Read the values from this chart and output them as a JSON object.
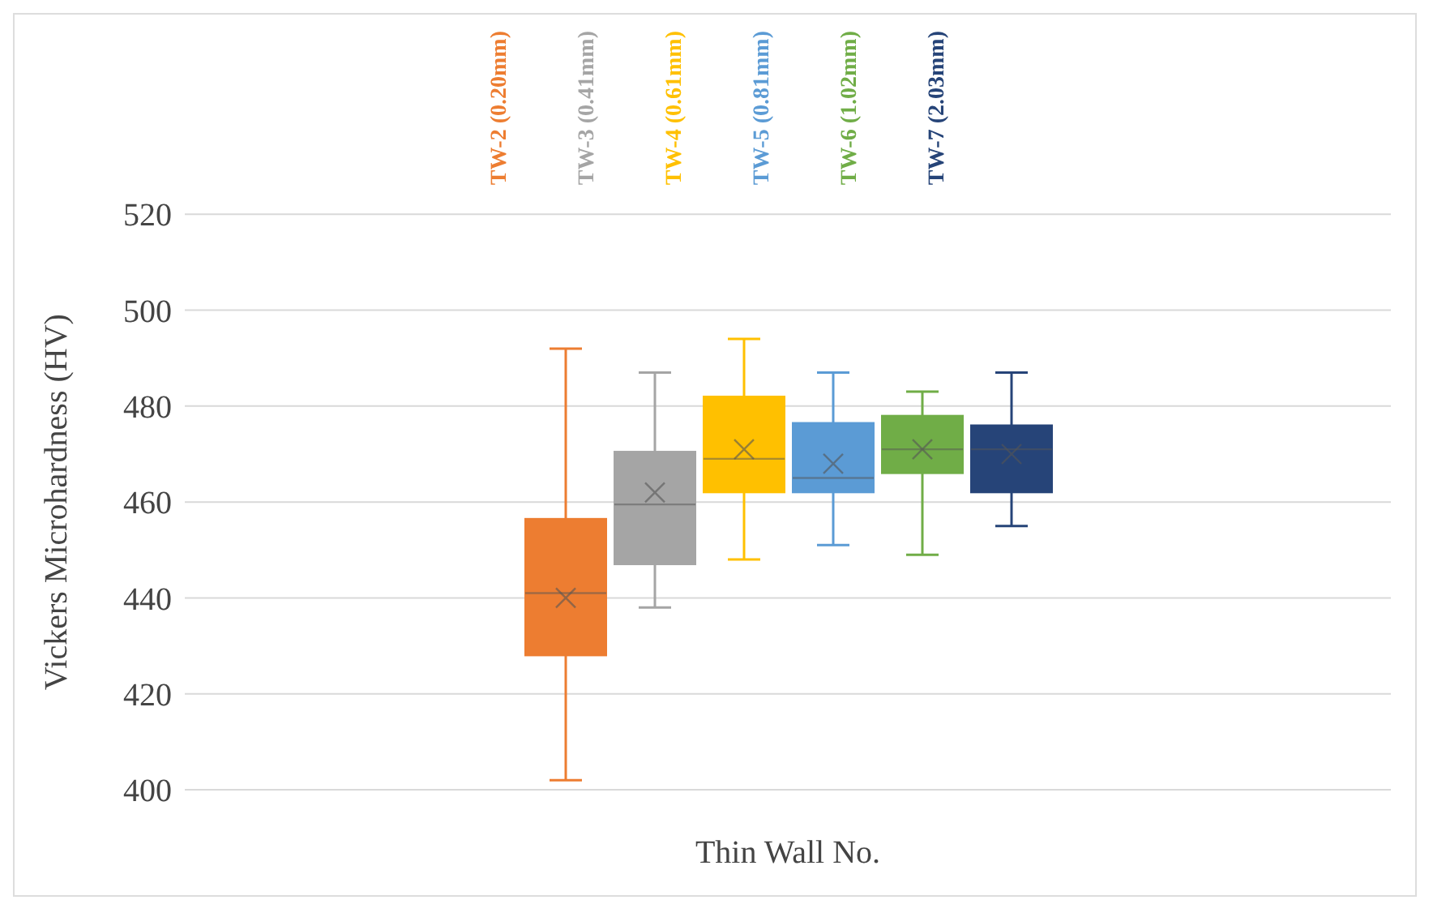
{
  "chart_data": {
    "type": "box",
    "ylabel": "Vickers Microhardness (HV)",
    "xlabel": "Thin Wall No.",
    "categories": [
      null
    ],
    "ylim": [
      400,
      520
    ],
    "yticks": [
      400,
      420,
      440,
      460,
      480,
      500,
      520
    ],
    "grid": "y",
    "legend": "top",
    "marker": "cross",
    "series": [
      {
        "name": "TW-2 (0.20mm)",
        "color": "#ed7d31",
        "boxes": [
          {
            "low": 402,
            "q1": 428,
            "median": 441,
            "q3": 456.5,
            "high": 492,
            "mean": 440
          }
        ]
      },
      {
        "name": "TW-3 (0.41mm)",
        "color": "#a5a5a5",
        "boxes": [
          {
            "low": 438,
            "q1": 447,
            "median": 459.5,
            "q3": 470.5,
            "high": 487,
            "mean": 462
          }
        ]
      },
      {
        "name": "TW-4 (0.61mm)",
        "color": "#ffc000",
        "boxes": [
          {
            "low": 448,
            "q1": 462,
            "median": 469,
            "q3": 482,
            "high": 494,
            "mean": 471
          }
        ]
      },
      {
        "name": "TW-5 (0.81mm)",
        "color": "#5b9bd5",
        "boxes": [
          {
            "low": 451,
            "q1": 462,
            "median": 465,
            "q3": 476.5,
            "high": 487,
            "mean": 468
          }
        ]
      },
      {
        "name": "TW-6 (1.02mm)",
        "color": "#70ad47",
        "boxes": [
          {
            "low": 449,
            "q1": 466,
            "median": 471,
            "q3": 478,
            "high": 483,
            "mean": 471
          }
        ]
      },
      {
        "name": "TW-7 (2.03mm)",
        "color": "#264478",
        "boxes": [
          {
            "low": 455,
            "q1": 462,
            "median": 471,
            "q3": 476,
            "high": 487,
            "mean": 470
          }
        ]
      }
    ]
  }
}
